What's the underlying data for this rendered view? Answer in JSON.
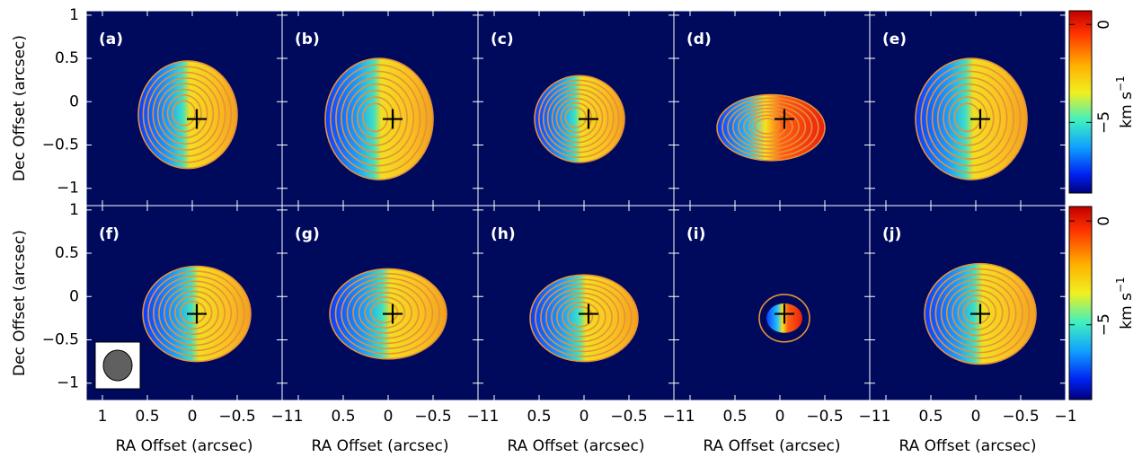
{
  "chart_data": {
    "type": "map",
    "panels": [
      "(a)",
      "(b)",
      "(c)",
      "(d)",
      "(e)",
      "(f)",
      "(g)",
      "(h)",
      "(i)",
      "(j)"
    ],
    "xlabel": "RA Offset (arcsec)",
    "ylabel": "Dec Offset (arcsec)",
    "xlim": [
      1.18,
      -1
    ],
    "ylim": [
      -1.2,
      1.05
    ],
    "xticks": [
      1,
      0.5,
      0,
      {
        "value": -0.5,
        "label": "−0.5"
      },
      {
        "value": -1,
        "label": "−1"
      }
    ],
    "yticks": [
      1,
      0.5,
      0,
      {
        "value": -0.5,
        "label": "−0.5"
      },
      {
        "value": -1,
        "label": "−1"
      }
    ],
    "colorbar": {
      "label": "km s",
      "label_exponent": "−1",
      "lim": [
        -8.6,
        0.7
      ],
      "ticks": [
        0,
        {
          "value": -5,
          "label": "−5"
        }
      ]
    }
  }
}
